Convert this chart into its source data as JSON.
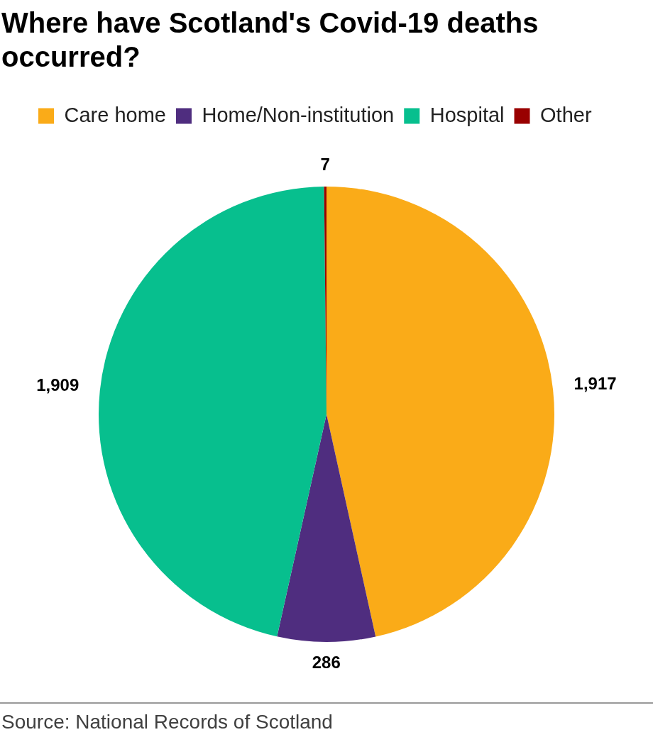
{
  "chart_data": {
    "type": "pie",
    "title": "Where have Scotland's Covid-19 deaths occurred?",
    "categories": [
      "Care home",
      "Home/Non-institution",
      "Hospital",
      "Other"
    ],
    "values": [
      1917,
      286,
      1909,
      7
    ],
    "colors": [
      "#faab18",
      "#4f2d7f",
      "#07bf8e",
      "#990000"
    ],
    "value_labels": [
      "1,917",
      "286",
      "1,909",
      "7"
    ],
    "legend": "top left",
    "annotations": [
      "Source: National Records of Scotland"
    ]
  }
}
